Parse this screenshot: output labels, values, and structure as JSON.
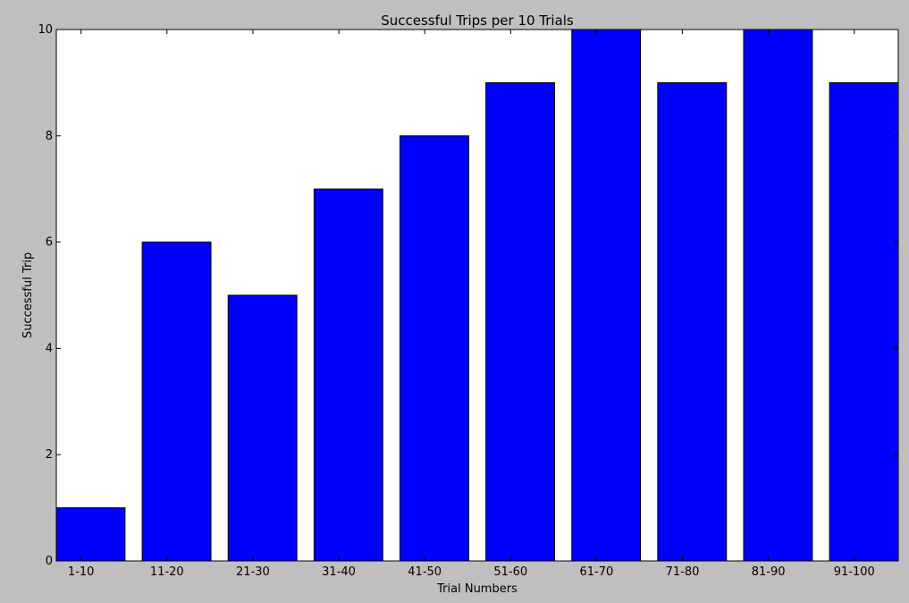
{
  "chart_data": {
    "type": "bar",
    "title": "Successful Trips per 10 Trials",
    "xlabel": "Trial Numbers",
    "ylabel": "Successful Trip",
    "categories": [
      "1-10",
      "11-20",
      "21-30",
      "31-40",
      "41-50",
      "51-60",
      "61-70",
      "71-80",
      "81-90",
      "91-100"
    ],
    "values": [
      1,
      6,
      5,
      7,
      8,
      9,
      10,
      9,
      10,
      9
    ],
    "ylim": [
      0,
      10
    ],
    "yticks": [
      "0",
      "2",
      "4",
      "6",
      "8",
      "10"
    ],
    "grid": false,
    "legend": "none",
    "colors": {
      "bar": "#0000ff",
      "bar_edge": "#000000",
      "plot_background": "#ffffff",
      "figure_background": "#bfbfbf"
    }
  }
}
